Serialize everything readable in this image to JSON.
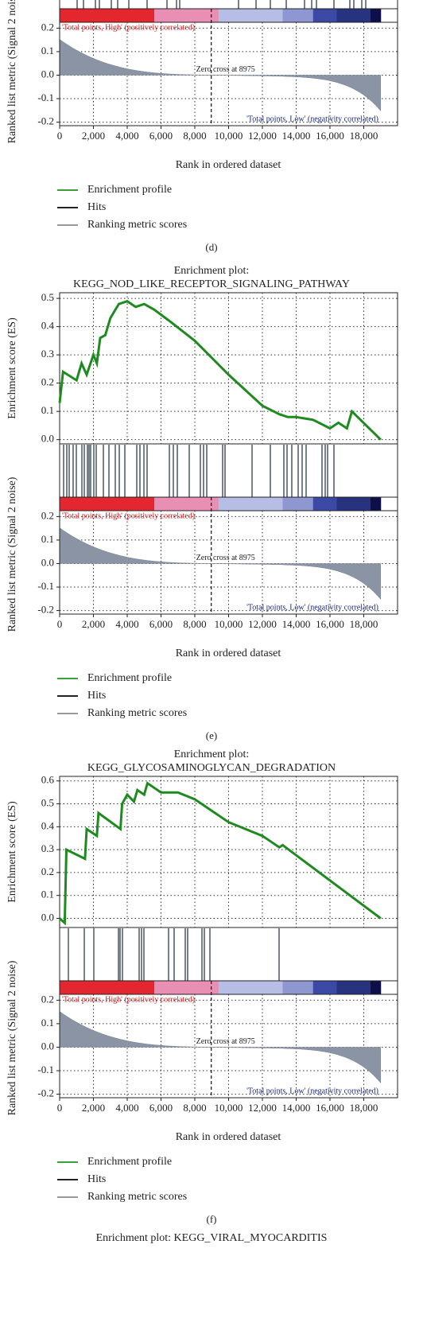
{
  "chart_data": [
    {
      "type": "gsea",
      "xlabel": "Rank in ordered dataset",
      "xlim": [
        0,
        20000
      ],
      "xticks": [
        0,
        {
          "value": 2000,
          "label": "2,000"
        },
        {
          "value": 4000,
          "label": "4,000"
        },
        {
          "value": 6000,
          "label": "6,000"
        },
        {
          "value": 8000,
          "label": "8,000"
        },
        {
          "value": 10000,
          "label": "10,000"
        },
        {
          "value": 12000,
          "label": "12,000"
        },
        {
          "value": 14000,
          "label": "14,000"
        },
        {
          "value": 16000,
          "label": "16,000"
        },
        {
          "value": 18000,
          "label": "18,000"
        }
      ],
      "grid": true,
      "hits": [
        1035,
        1412,
        2118,
        2353,
        3059,
        3435,
        4094,
        5176,
        6353,
        6918,
        7106,
        10588,
        11624,
        12471,
        13412,
        14494,
        14918,
        15200,
        16235,
        17176,
        17412,
        17882,
        18118
      ],
      "metric": {
        "ylabel": "Ranked list metric (Signal 2 noise)",
        "ylim": [
          -0.215,
          0.225
        ],
        "yticks": [
          0.2,
          0.1,
          {
            "value": 0,
            "label": "0.0"
          },
          -0.1,
          -0.2
        ],
        "zero_cross": 8975,
        "zero_label": "Zero cross at 8975",
        "high_label": "'Total points, High' (positively correlated)",
        "low_label": "'Total points, Low' (negativity correlated)"
      },
      "legend": [
        {
          "name": "Enrichment profile",
          "color": "#3aa03a"
        },
        {
          "name": "Hits",
          "color": "#222222"
        },
        {
          "name": "Ranking metric scores",
          "color": "#999999"
        }
      ],
      "panel_label": "(d)"
    },
    {
      "type": "gsea",
      "title": "Enrichment plot:",
      "subtitle": "KEGG_NOD_LIKE_RECEPTOR_SIGNALING_PATHWAY",
      "xlabel": "Rank in ordered dataset",
      "xlim": [
        0,
        20000
      ],
      "xticks": [
        0,
        {
          "value": 2000,
          "label": "2,000"
        },
        {
          "value": 4000,
          "label": "4,000"
        },
        {
          "value": 6000,
          "label": "6,000"
        },
        {
          "value": 8000,
          "label": "8,000"
        },
        {
          "value": 10000,
          "label": "10,000"
        },
        {
          "value": 12000,
          "label": "12,000"
        },
        {
          "value": 14000,
          "label": "14,000"
        },
        {
          "value": 16000,
          "label": "16,000"
        },
        {
          "value": 18000,
          "label": "18,000"
        }
      ],
      "grid": true,
      "es": {
        "ylabel": "Enrichment score (ES)",
        "ylim": [
          -0.015,
          0.52
        ],
        "yticks": [
          {
            "value": 0,
            "label": "0.0"
          },
          0.1,
          0.2,
          0.3,
          0.4,
          0.5
        ],
        "color": "#1f8a1f",
        "x": [
          0,
          200,
          1000,
          1300,
          1600,
          2000,
          2200,
          2400,
          2700,
          3000,
          3200,
          3500,
          4000,
          4500,
          5000,
          5600,
          6500,
          8000,
          10000,
          12000,
          13000,
          13500,
          14000,
          15000,
          16000,
          16500,
          17000,
          17300,
          19000
        ],
        "values": [
          0.13,
          0.24,
          0.21,
          0.27,
          0.23,
          0.3,
          0.27,
          0.36,
          0.37,
          0.43,
          0.45,
          0.48,
          0.49,
          0.47,
          0.48,
          0.46,
          0.42,
          0.35,
          0.23,
          0.12,
          0.09,
          0.08,
          0.08,
          0.07,
          0.04,
          0.06,
          0.04,
          0.1,
          0.0
        ]
      },
      "hits": [
        235,
        424,
        565,
        800,
        988,
        1318,
        1459,
        1647,
        1741,
        1835,
        2024,
        2165,
        2588,
        2918,
        3294,
        3529,
        3859,
        4565,
        4753,
        4988,
        5176,
        6494,
        6729,
        6965,
        7671,
        8329,
        8518,
        8706,
        9647,
        9788,
        11388,
        12471,
        13271,
        13459,
        13741,
        14118,
        14353,
        14588,
        15529,
        15718,
        15859,
        16235
      ],
      "metric": {
        "ylabel": "Ranked list metric (Signal 2 noise)",
        "ylim": [
          -0.215,
          0.225
        ],
        "yticks": [
          0.2,
          0.1,
          {
            "value": 0,
            "label": "0.0"
          },
          -0.1,
          -0.2
        ],
        "zero_cross": 8975,
        "zero_label": "Zero cross at 8975",
        "high_label": "'Total points, High' (positively correlated)",
        "low_label": "'Total points, Low' (negativity correlated)"
      },
      "legend": [
        {
          "name": "Enrichment profile",
          "color": "#3aa03a"
        },
        {
          "name": "Hits",
          "color": "#222222"
        },
        {
          "name": "Ranking metric scores",
          "color": "#999999"
        }
      ],
      "panel_label": "(e)"
    },
    {
      "type": "gsea",
      "title": "Enrichment plot:",
      "subtitle": "KEGG_GLYCOSAMINOGLYCAN_DEGRADATION",
      "xlabel": "Rank in ordered dataset",
      "xlim": [
        0,
        20000
      ],
      "xticks": [
        0,
        {
          "value": 2000,
          "label": "2,000"
        },
        {
          "value": 4000,
          "label": "4,000"
        },
        {
          "value": 6000,
          "label": "6,000"
        },
        {
          "value": 8000,
          "label": "8,000"
        },
        {
          "value": 10000,
          "label": "10,000"
        },
        {
          "value": 12000,
          "label": "12,000"
        },
        {
          "value": 14000,
          "label": "14,000"
        },
        {
          "value": 16000,
          "label": "16,000"
        },
        {
          "value": 18000,
          "label": "18,000"
        }
      ],
      "grid": true,
      "es": {
        "ylabel": "Enrichment score (ES)",
        "ylim": [
          -0.04,
          0.62
        ],
        "yticks": [
          {
            "value": 0,
            "label": "0.0"
          },
          0.1,
          0.2,
          0.3,
          0.4,
          0.5,
          0.6
        ],
        "color": "#1f8a1f",
        "x": [
          0,
          300,
          400,
          1500,
          1600,
          2200,
          2300,
          3600,
          3700,
          4000,
          4400,
          4600,
          5000,
          5200,
          6000,
          7000,
          8000,
          9000,
          10000,
          12000,
          13000,
          13200,
          19000
        ],
        "values": [
          0.0,
          -0.02,
          0.3,
          0.26,
          0.39,
          0.36,
          0.46,
          0.39,
          0.5,
          0.54,
          0.51,
          0.56,
          0.54,
          0.59,
          0.55,
          0.55,
          0.52,
          0.47,
          0.42,
          0.36,
          0.31,
          0.32,
          0.0
        ]
      },
      "hits": [
        518,
        1459,
        2024,
        3482,
        3576,
        3718,
        4706,
        4847,
        4988,
        6447,
        6776,
        7435,
        7576,
        8424,
        8565,
        8894,
        12988
      ],
      "metric": {
        "ylabel": "Ranked list metric (Signal 2 noise)",
        "ylim": [
          -0.215,
          0.225
        ],
        "yticks": [
          0.2,
          0.1,
          {
            "value": 0,
            "label": "0.0"
          },
          -0.1,
          -0.2
        ],
        "zero_cross": 8975,
        "zero_label": "Zero cross at 8975",
        "high_label": "'Total points, High' (positively correlated)",
        "low_label": "'Total points, Low' (negativity correlated)"
      },
      "legend": [
        {
          "name": "Enrichment profile",
          "color": "#3aa03a"
        },
        {
          "name": "Hits",
          "color": "#222222"
        },
        {
          "name": "Ranking metric scores",
          "color": "#999999"
        }
      ],
      "panel_label": "(f)"
    },
    {
      "type": "gsea",
      "title": "Enrichment plot: KEGG_VIRAL_MYOCARDITIS"
    }
  ]
}
